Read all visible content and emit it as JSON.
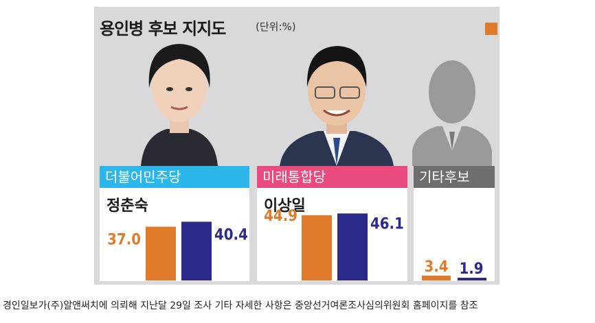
{
  "header": {
    "title": "용인병 후보 지지도",
    "unit": "(단위:%)"
  },
  "colors": {
    "series_a": "#e07b2c",
    "series_b": "#2b2a8a",
    "party_1": "#2cb6ea",
    "party_2": "#ea4b7f",
    "party_3": "#6d6e71"
  },
  "candidates": [
    {
      "party": "더불어민주당",
      "name": "정춘숙"
    },
    {
      "party": "미래통합당",
      "name": "이상일"
    },
    {
      "party": "기타후보",
      "name": ""
    }
  ],
  "chart_data": {
    "type": "bar",
    "title": "용인병 후보 지지도",
    "categories": [
      "정춘숙",
      "이상일",
      "기타후보"
    ],
    "series": [
      {
        "values": [
          37.0,
          44.9,
          3.4
        ]
      },
      {
        "values": [
          40.4,
          46.1,
          1.9
        ]
      }
    ],
    "labels": [
      [
        "37.0",
        "44.9",
        "3.4"
      ],
      [
        "40.4",
        "46.1",
        "1.9"
      ]
    ],
    "ylim": [
      0,
      50
    ]
  },
  "footer": {
    "caption": "경인일보가(주)알앤써치에 의뢰해 지난달 29일 조사 기타 자세한 사항은 중앙선거여론조사심의위원회 홈페이지를 참조"
  }
}
